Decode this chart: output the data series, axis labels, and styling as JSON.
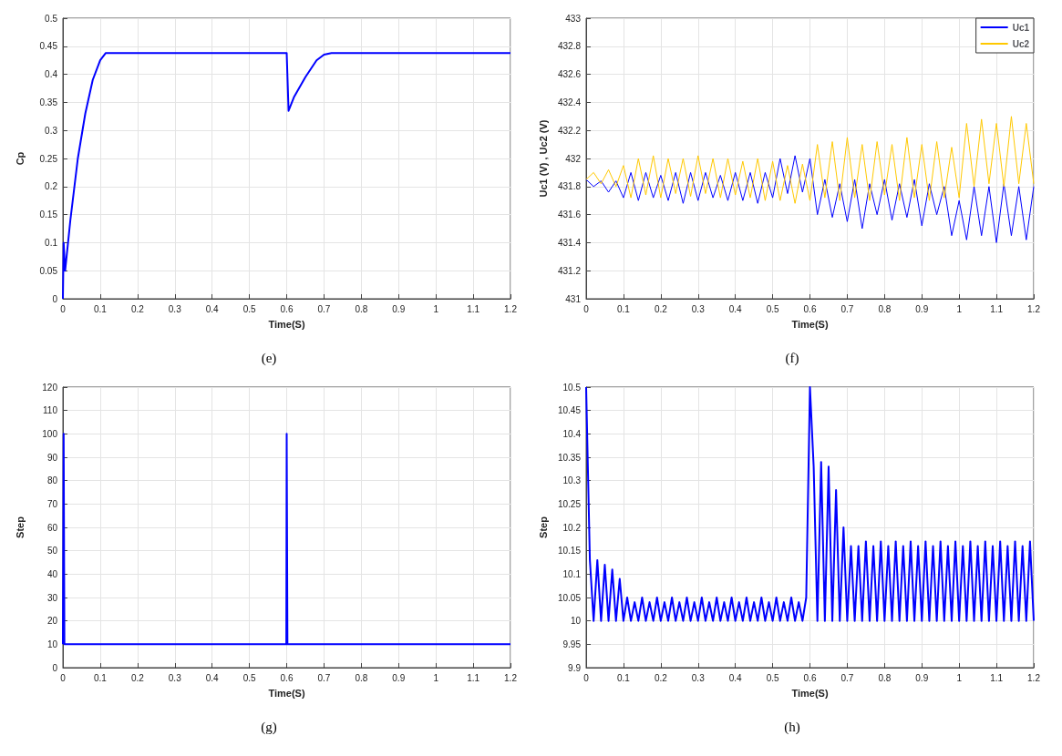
{
  "chart_data": [
    {
      "type": "line",
      "title": "(e)",
      "xlabel": "Time(S)",
      "ylabel": "Cp",
      "xlim": [
        0,
        1.2
      ],
      "xticks": [
        0,
        0.1,
        0.2,
        0.3,
        0.4,
        0.5,
        0.6,
        0.7,
        0.8,
        0.9,
        1,
        1.1,
        1.2
      ],
      "ylim": [
        0,
        0.5
      ],
      "yticks": [
        0,
        0.05,
        0.1,
        0.15,
        0.2,
        0.25,
        0.3,
        0.35,
        0.4,
        0.45,
        0.5
      ],
      "grid": true,
      "series": [
        {
          "color": "#0000ff",
          "x": [
            0,
            0.002,
            0.006,
            0.02,
            0.04,
            0.06,
            0.08,
            0.1,
            0.115,
            0.3,
            0.6,
            0.605,
            0.62,
            0.65,
            0.68,
            0.7,
            0.72,
            1.2
          ],
          "values": [
            0,
            0.1,
            0.05,
            0.14,
            0.25,
            0.33,
            0.39,
            0.425,
            0.438,
            0.438,
            0.438,
            0.335,
            0.36,
            0.395,
            0.425,
            0.435,
            0.438,
            0.438
          ]
        }
      ]
    },
    {
      "type": "line",
      "title": "(f)",
      "xlabel": "Time(S)",
      "ylabel": "Uc1 (V) , Uc2 (V)",
      "xlim": [
        0,
        1.2
      ],
      "xticks": [
        0,
        0.1,
        0.2,
        0.3,
        0.4,
        0.5,
        0.6,
        0.7,
        0.8,
        0.9,
        1,
        1.1,
        1.2
      ],
      "ylim": [
        431,
        433
      ],
      "yticks": [
        431,
        431.2,
        431.4,
        431.6,
        431.8,
        432,
        432.2,
        432.4,
        432.6,
        432.8,
        433
      ],
      "grid": true,
      "legend": "top right",
      "x": [
        0,
        0.02,
        0.04,
        0.06,
        0.08,
        0.1,
        0.12,
        0.14,
        0.16,
        0.18,
        0.2,
        0.22,
        0.24,
        0.26,
        0.28,
        0.3,
        0.32,
        0.34,
        0.36,
        0.38,
        0.4,
        0.42,
        0.44,
        0.46,
        0.48,
        0.5,
        0.52,
        0.54,
        0.56,
        0.58,
        0.6,
        0.62,
        0.64,
        0.66,
        0.68,
        0.7,
        0.72,
        0.74,
        0.76,
        0.78,
        0.8,
        0.82,
        0.84,
        0.86,
        0.88,
        0.9,
        0.92,
        0.94,
        0.96,
        0.98,
        1,
        1.02,
        1.04,
        1.06,
        1.08,
        1.1,
        1.12,
        1.14,
        1.16,
        1.18,
        1.2
      ],
      "series": [
        {
          "name": "Uc1",
          "color": "#0000ff",
          "values": [
            431.85,
            431.8,
            431.84,
            431.76,
            431.84,
            431.72,
            431.9,
            431.7,
            431.9,
            431.72,
            431.88,
            431.7,
            431.9,
            431.68,
            431.9,
            431.7,
            431.9,
            431.72,
            431.88,
            431.7,
            431.9,
            431.7,
            431.9,
            431.68,
            431.9,
            431.72,
            432.0,
            431.75,
            432.02,
            431.76,
            432.0,
            431.6,
            431.85,
            431.58,
            431.82,
            431.55,
            431.85,
            431.5,
            431.82,
            431.6,
            431.85,
            431.56,
            431.82,
            431.58,
            431.85,
            431.52,
            431.82,
            431.6,
            431.8,
            431.45,
            431.7,
            431.42,
            431.8,
            431.45,
            431.8,
            431.4,
            431.82,
            431.45,
            431.8,
            431.42,
            431.8
          ]
        },
        {
          "name": "Uc2",
          "color": "#ffc800",
          "values": [
            431.85,
            431.9,
            431.82,
            431.92,
            431.8,
            431.95,
            431.72,
            432.0,
            431.74,
            432.02,
            431.72,
            432.0,
            431.75,
            432.0,
            431.73,
            432.02,
            431.75,
            432.0,
            431.72,
            432.0,
            431.74,
            431.98,
            431.72,
            432.0,
            431.7,
            431.98,
            431.7,
            431.95,
            431.68,
            431.96,
            431.7,
            432.1,
            431.72,
            432.12,
            431.7,
            432.15,
            431.72,
            432.1,
            431.7,
            432.12,
            431.74,
            432.1,
            431.7,
            432.15,
            431.72,
            432.1,
            431.7,
            432.12,
            431.72,
            432.08,
            431.72,
            432.25,
            431.8,
            432.28,
            431.82,
            432.25,
            431.8,
            432.3,
            431.82,
            432.25,
            431.82
          ]
        }
      ]
    },
    {
      "type": "line",
      "title": "(g)",
      "xlabel": "Time(S)",
      "ylabel": "Step",
      "xlim": [
        0,
        1.2
      ],
      "xticks": [
        0,
        0.1,
        0.2,
        0.3,
        0.4,
        0.5,
        0.6,
        0.7,
        0.8,
        0.9,
        1,
        1.1,
        1.2
      ],
      "ylim": [
        0,
        120
      ],
      "yticks": [
        0,
        10,
        20,
        30,
        40,
        50,
        60,
        70,
        80,
        90,
        100,
        110,
        120
      ],
      "grid": true,
      "series": [
        {
          "color": "#0000ff",
          "x": [
            0,
            0.002,
            0.004,
            0.599,
            0.6,
            0.602,
            1.2
          ],
          "values": [
            10,
            100,
            10,
            10,
            100,
            10,
            10
          ]
        }
      ]
    },
    {
      "type": "line",
      "title": "(h)",
      "xlabel": "Time(S)",
      "ylabel": "Step",
      "xlim": [
        0,
        1.2
      ],
      "xticks": [
        0,
        0.1,
        0.2,
        0.3,
        0.4,
        0.5,
        0.6,
        0.7,
        0.8,
        0.9,
        1,
        1.1,
        1.2
      ],
      "ylim": [
        9.9,
        10.5
      ],
      "yticks": [
        9.9,
        9.95,
        10,
        10.05,
        10.1,
        10.15,
        10.2,
        10.25,
        10.3,
        10.35,
        10.4,
        10.45,
        10.5
      ],
      "grid": true,
      "x": [
        0,
        0.01,
        0.02,
        0.03,
        0.04,
        0.05,
        0.06,
        0.07,
        0.08,
        0.09,
        0.1,
        0.11,
        0.12,
        0.13,
        0.14,
        0.15,
        0.16,
        0.17,
        0.18,
        0.19,
        0.2,
        0.21,
        0.22,
        0.23,
        0.24,
        0.25,
        0.26,
        0.27,
        0.28,
        0.29,
        0.3,
        0.31,
        0.32,
        0.33,
        0.34,
        0.35,
        0.36,
        0.37,
        0.38,
        0.39,
        0.4,
        0.41,
        0.42,
        0.43,
        0.44,
        0.45,
        0.46,
        0.47,
        0.48,
        0.49,
        0.5,
        0.51,
        0.52,
        0.53,
        0.54,
        0.55,
        0.56,
        0.57,
        0.58,
        0.59,
        0.6,
        0.61,
        0.62,
        0.63,
        0.64,
        0.65,
        0.66,
        0.67,
        0.68,
        0.69,
        0.7,
        0.71,
        0.72,
        0.73,
        0.74,
        0.75,
        0.76,
        0.77,
        0.78,
        0.79,
        0.8,
        0.81,
        0.82,
        0.83,
        0.84,
        0.85,
        0.86,
        0.87,
        0.88,
        0.89,
        0.9,
        0.91,
        0.92,
        0.93,
        0.94,
        0.95,
        0.96,
        0.97,
        0.98,
        0.99,
        1,
        1.01,
        1.02,
        1.03,
        1.04,
        1.05,
        1.06,
        1.07,
        1.08,
        1.09,
        1.1,
        1.11,
        1.12,
        1.13,
        1.14,
        1.15,
        1.16,
        1.17,
        1.18,
        1.19,
        1.2
      ],
      "series": [
        {
          "color": "#0000ff",
          "values": [
            10.5,
            10.13,
            10,
            10.13,
            10,
            10.12,
            10,
            10.11,
            10,
            10.09,
            10,
            10.05,
            10,
            10.04,
            10,
            10.05,
            10,
            10.04,
            10,
            10.05,
            10,
            10.04,
            10,
            10.05,
            10,
            10.04,
            10,
            10.05,
            10,
            10.04,
            10,
            10.05,
            10,
            10.04,
            10,
            10.05,
            10,
            10.04,
            10,
            10.05,
            10,
            10.04,
            10,
            10.05,
            10,
            10.04,
            10,
            10.05,
            10,
            10.04,
            10,
            10.05,
            10,
            10.04,
            10,
            10.05,
            10,
            10.04,
            10,
            10.05,
            10.5,
            10.33,
            10,
            10.34,
            10,
            10.33,
            10,
            10.28,
            10,
            10.2,
            10,
            10.16,
            10,
            10.16,
            10,
            10.17,
            10,
            10.16,
            10,
            10.17,
            10,
            10.16,
            10,
            10.17,
            10,
            10.16,
            10,
            10.17,
            10,
            10.16,
            10,
            10.17,
            10,
            10.16,
            10,
            10.17,
            10,
            10.16,
            10,
            10.17,
            10,
            10.16,
            10,
            10.17,
            10,
            10.16,
            10,
            10.17,
            10,
            10.16,
            10,
            10.17,
            10,
            10.16,
            10,
            10.17,
            10,
            10.16,
            10,
            10.17,
            10
          ]
        }
      ]
    }
  ]
}
